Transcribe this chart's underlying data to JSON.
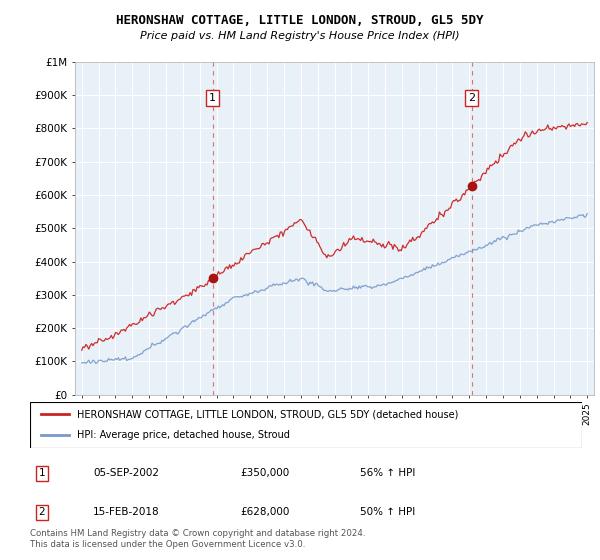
{
  "title": "HERONSHAW COTTAGE, LITTLE LONDON, STROUD, GL5 5DY",
  "subtitle": "Price paid vs. HM Land Registry's House Price Index (HPI)",
  "y_ticks": [
    0,
    100000,
    200000,
    300000,
    400000,
    500000,
    600000,
    700000,
    800000,
    900000,
    1000000
  ],
  "y_tick_labels": [
    "£0",
    "£100K",
    "£200K",
    "£300K",
    "£400K",
    "£500K",
    "£600K",
    "£700K",
    "£800K",
    "£900K",
    "£1M"
  ],
  "sale1_year": 2002.75,
  "sale1_price": 350000,
  "sale2_year": 2018.12,
  "sale2_price": 628000,
  "legend_line1": "HERONSHAW COTTAGE, LITTLE LONDON, STROUD, GL5 5DY (detached house)",
  "legend_line2": "HPI: Average price, detached house, Stroud",
  "note1_label": "1",
  "note1_date": "05-SEP-2002",
  "note1_price": "£350,000",
  "note1_hpi": "56% ↑ HPI",
  "note2_label": "2",
  "note2_date": "15-FEB-2018",
  "note2_price": "£628,000",
  "note2_hpi": "50% ↑ HPI",
  "footer": "Contains HM Land Registry data © Crown copyright and database right 2024.\nThis data is licensed under the Open Government Licence v3.0.",
  "red_color": "#cc2222",
  "blue_color": "#7799cc",
  "chart_bg": "#e8f0f8",
  "bg_color": "#ffffff",
  "grid_color": "#ffffff"
}
